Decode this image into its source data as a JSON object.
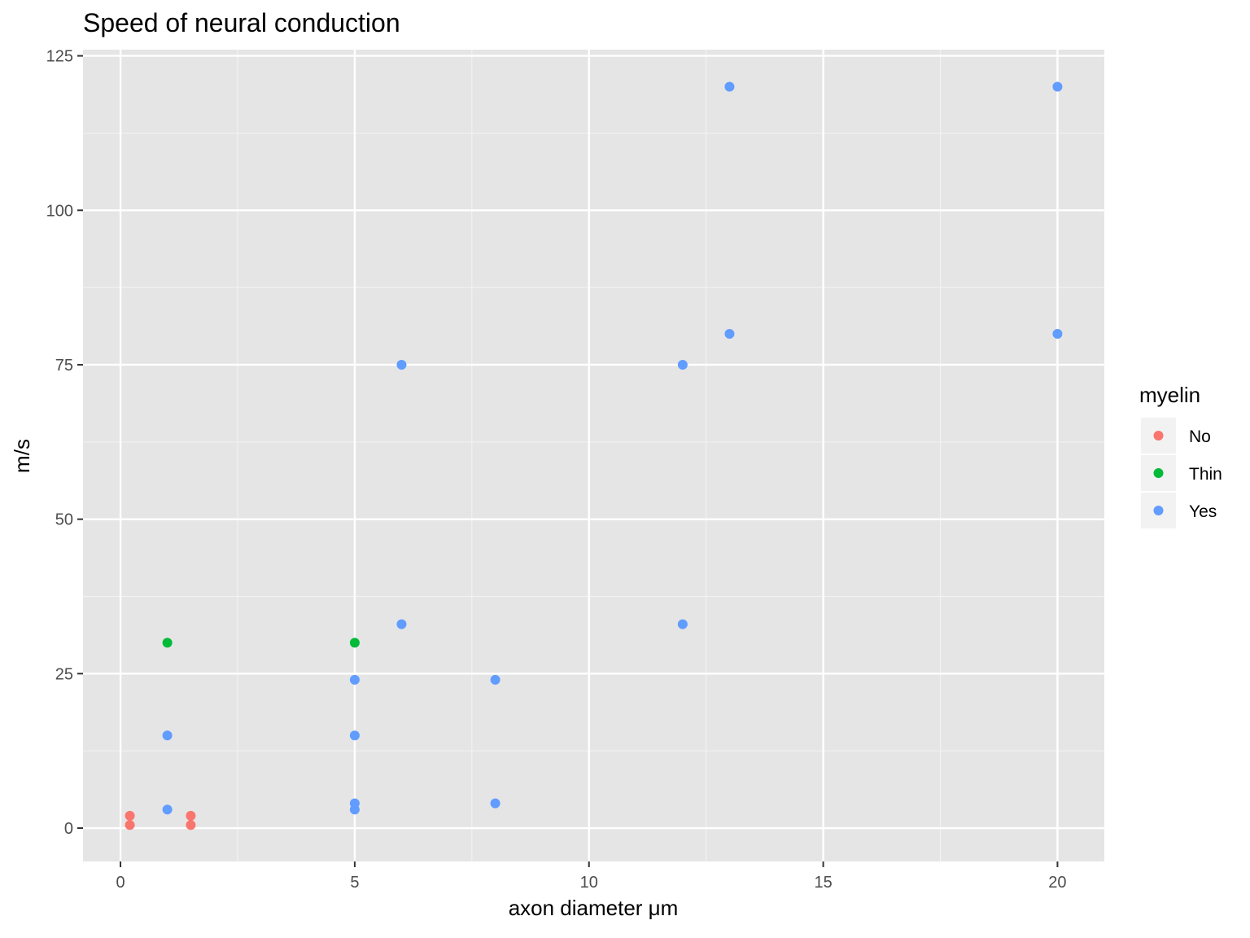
{
  "chart_data": {
    "type": "scatter",
    "title": "Speed of neural conduction",
    "xlabel": "axon diameter μm",
    "ylabel": "m/s",
    "xlim": [
      -0.8,
      21
    ],
    "ylim": [
      -5.4,
      126
    ],
    "x_ticks": [
      0,
      5,
      10,
      15,
      20
    ],
    "x_tick_labels": [
      "0",
      "5",
      "10",
      "15",
      "20"
    ],
    "y_ticks": [
      0,
      25,
      50,
      75,
      100,
      125
    ],
    "y_tick_labels": [
      "0",
      "25",
      "50",
      "75",
      "100",
      "125"
    ],
    "grid": true,
    "legend": {
      "title": "myelin",
      "position": "right"
    },
    "series": [
      {
        "name": "No",
        "color": "#F8766D",
        "points": [
          [
            0.2,
            0.5
          ],
          [
            0.2,
            2
          ],
          [
            1.5,
            0.5
          ],
          [
            1.5,
            2
          ]
        ]
      },
      {
        "name": "Thin",
        "color": "#00BA38",
        "points": [
          [
            1,
            30
          ],
          [
            5,
            30
          ]
        ]
      },
      {
        "name": "Yes",
        "color": "#619CFF",
        "points": [
          [
            1,
            3
          ],
          [
            1,
            15
          ],
          [
            5,
            3
          ],
          [
            5,
            4
          ],
          [
            5,
            15
          ],
          [
            5,
            24
          ],
          [
            6,
            33
          ],
          [
            6,
            75
          ],
          [
            8,
            4
          ],
          [
            8,
            24
          ],
          [
            12,
            33
          ],
          [
            12,
            75
          ],
          [
            13,
            80
          ],
          [
            13,
            120
          ],
          [
            20,
            80
          ],
          [
            20,
            120
          ]
        ]
      }
    ]
  }
}
